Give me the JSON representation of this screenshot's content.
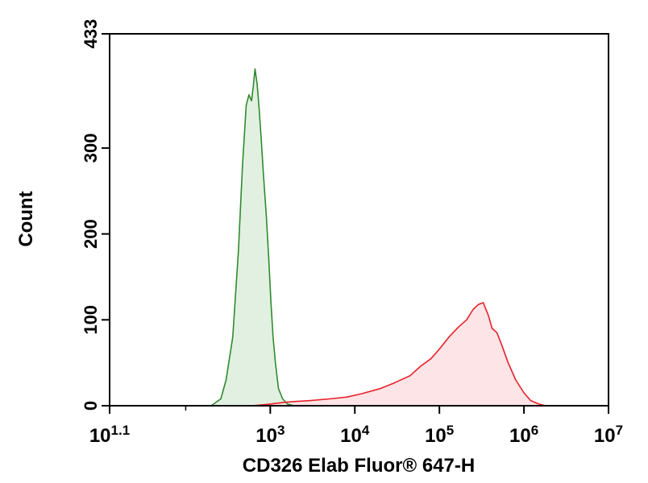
{
  "chart_data": {
    "type": "area",
    "title": "",
    "xlabel": "CD326 Elab Fluor® 647-H",
    "ylabel": "Count",
    "x_scale": "log",
    "xlim": [
      12.59,
      10000000
    ],
    "ylim": [
      0,
      433
    ],
    "grid": false,
    "legend": "none",
    "x_ticks": [
      {
        "value": 12.59,
        "base": "10",
        "exp": "1.1"
      },
      {
        "value": 1000,
        "base": "10",
        "exp": "3"
      },
      {
        "value": 10000,
        "base": "10",
        "exp": "4"
      },
      {
        "value": 100000,
        "base": "10",
        "exp": "5"
      },
      {
        "value": 1000000,
        "base": "10",
        "exp": "6"
      },
      {
        "value": 10000000,
        "base": "10",
        "exp": "7"
      }
    ],
    "x_minor_ticks": [
      100
    ],
    "y_ticks": [
      {
        "value": 0,
        "label": "0"
      },
      {
        "value": 100,
        "label": "100"
      },
      {
        "value": 200,
        "label": "200"
      },
      {
        "value": 300,
        "label": "300"
      },
      {
        "value": 433,
        "label": "433"
      }
    ],
    "series": [
      {
        "color": "#2e8b2e",
        "fill": "#e2f0e2",
        "x": [
          200,
          260,
          300,
          360,
          420,
          470,
          520,
          560,
          600,
          630,
          660,
          700,
          740,
          780,
          830,
          900,
          960,
          1020,
          1080,
          1150,
          1250,
          1400,
          1600,
          1900
        ],
        "y": [
          0,
          8,
          30,
          80,
          180,
          280,
          350,
          362,
          355,
          372,
          392,
          374,
          345,
          312,
          270,
          220,
          170,
          120,
          80,
          50,
          20,
          8,
          2,
          0
        ]
      },
      {
        "color": "#e8202a",
        "fill": "#fde4e6",
        "x": [
          600,
          800,
          1000,
          1500,
          2000,
          3000,
          5000,
          8000,
          12000,
          20000,
          30000,
          45000,
          60000,
          80000,
          100000,
          130000,
          170000,
          210000,
          250000,
          290000,
          330000,
          380000,
          420000,
          480000,
          550000,
          650000,
          800000,
          1000000,
          1200000,
          1500000,
          1800000
        ],
        "y": [
          0,
          1,
          2,
          4,
          5,
          6,
          8,
          10,
          14,
          20,
          27,
          35,
          46,
          55,
          66,
          80,
          92,
          100,
          112,
          118,
          120,
          105,
          90,
          85,
          70,
          50,
          30,
          15,
          6,
          2,
          0
        ]
      }
    ]
  }
}
